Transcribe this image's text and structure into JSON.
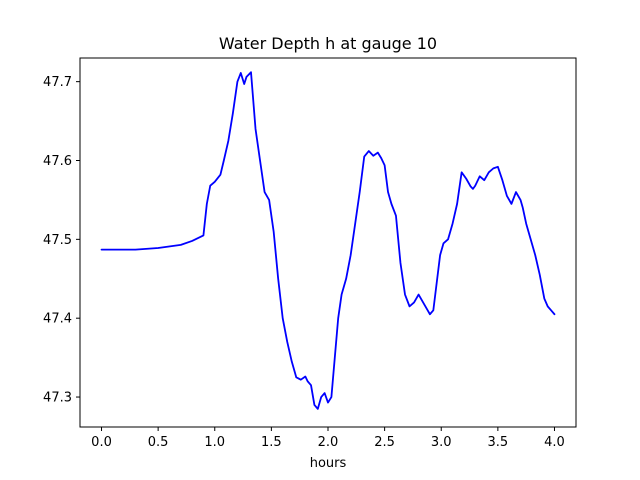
{
  "chart_data": {
    "type": "line",
    "title": "Water Depth h at gauge 10",
    "xlabel": "hours",
    "ylabel": "",
    "xlim": [
      -0.19,
      4.19
    ],
    "ylim": [
      47.262,
      47.73
    ],
    "xticks": [
      0.0,
      0.5,
      1.0,
      1.5,
      2.0,
      2.5,
      3.0,
      3.5,
      4.0
    ],
    "xtick_labels": [
      "0.0",
      "0.5",
      "1.0",
      "1.5",
      "2.0",
      "2.5",
      "3.0",
      "3.5",
      "4.0"
    ],
    "yticks": [
      47.3,
      47.4,
      47.5,
      47.6,
      47.7
    ],
    "ytick_labels": [
      "47.3",
      "47.4",
      "47.5",
      "47.6",
      "47.7"
    ],
    "grid": false,
    "line_color": "#0000ff",
    "series": [
      {
        "x": [
          0.0,
          0.3,
          0.5,
          0.7,
          0.8,
          0.9,
          0.93,
          0.96,
          1.0,
          1.05,
          1.08,
          1.12,
          1.16,
          1.2,
          1.23,
          1.26,
          1.28,
          1.32,
          1.36,
          1.4,
          1.44,
          1.48,
          1.52,
          1.56,
          1.6,
          1.64,
          1.68,
          1.72,
          1.76,
          1.8,
          1.82,
          1.85,
          1.88,
          1.91,
          1.94,
          1.97,
          2.0,
          2.03,
          2.06,
          2.09,
          2.12,
          2.16,
          2.2,
          2.24,
          2.28,
          2.32,
          2.36,
          2.4,
          2.44,
          2.47,
          2.5,
          2.53,
          2.56,
          2.6,
          2.64,
          2.68,
          2.72,
          2.76,
          2.8,
          2.84,
          2.88,
          2.9,
          2.93,
          2.96,
          2.99,
          3.02,
          3.06,
          3.1,
          3.14,
          3.18,
          3.22,
          3.26,
          3.28,
          3.3,
          3.34,
          3.38,
          3.42,
          3.46,
          3.5,
          3.54,
          3.58,
          3.62,
          3.66,
          3.7,
          3.72,
          3.75,
          3.79,
          3.83,
          3.87,
          3.91,
          3.94,
          3.97,
          4.0
        ],
        "y": [
          47.487,
          47.487,
          47.489,
          47.493,
          47.498,
          47.505,
          47.545,
          47.568,
          47.573,
          47.582,
          47.6,
          47.625,
          47.66,
          47.7,
          47.711,
          47.697,
          47.706,
          47.712,
          47.64,
          47.6,
          47.56,
          47.55,
          47.51,
          47.45,
          47.4,
          47.37,
          47.345,
          47.325,
          47.322,
          47.326,
          47.32,
          47.315,
          47.29,
          47.285,
          47.3,
          47.305,
          47.293,
          47.3,
          47.35,
          47.4,
          47.43,
          47.45,
          47.48,
          47.52,
          47.56,
          47.605,
          47.612,
          47.606,
          47.61,
          47.603,
          47.594,
          47.56,
          47.545,
          47.53,
          47.47,
          47.43,
          47.415,
          47.42,
          47.43,
          47.42,
          47.41,
          47.405,
          47.41,
          47.445,
          47.48,
          47.495,
          47.5,
          47.52,
          47.545,
          47.585,
          47.577,
          47.567,
          47.564,
          47.568,
          47.58,
          47.575,
          47.585,
          47.59,
          47.592,
          47.575,
          47.555,
          47.545,
          47.56,
          47.55,
          47.54,
          47.52,
          47.5,
          47.48,
          47.455,
          47.425,
          47.415,
          47.41,
          47.405
        ]
      }
    ]
  }
}
